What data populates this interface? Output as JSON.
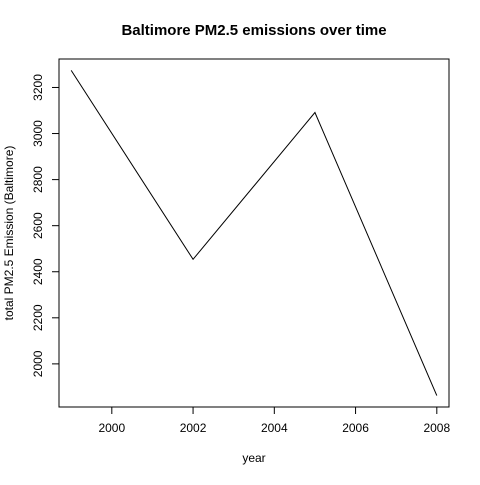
{
  "chart_data": {
    "type": "line",
    "title": "Baltimore PM2.5 emissions over time",
    "xlabel": "year",
    "ylabel": "total PM2.5 Emission (Baltimore)",
    "x": [
      1999,
      2002,
      2005,
      2008
    ],
    "series": [
      {
        "values": [
          3274.18,
          2453.916,
          3091.354,
          1862.282
        ]
      }
    ],
    "xlim": [
      1998.7,
      2008.3
    ],
    "ylim": [
      1812.8,
      3323.6
    ],
    "xticks": [
      2000,
      2002,
      2004,
      2006,
      2008
    ],
    "yticks": [
      2000,
      2200,
      2400,
      2600,
      2800,
      3000,
      3200
    ],
    "line_color": "#000000",
    "grid": false,
    "legend": "none"
  }
}
